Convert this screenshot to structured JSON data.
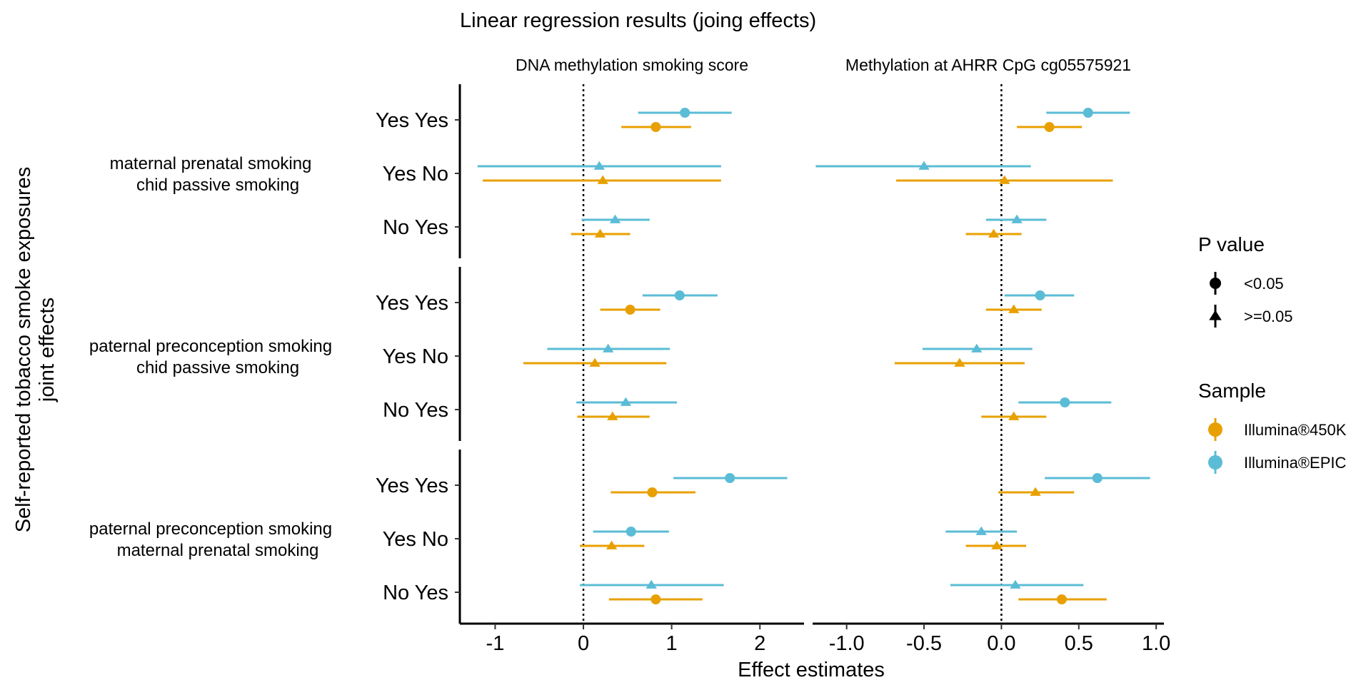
{
  "chart_data": {
    "type": "forest",
    "title": "Linear regression results (joing effects)",
    "xlabel": "Effect estimates",
    "ylabel_lines": [
      "Self-reported tobacco smoke exposures",
      "joint effects"
    ],
    "reference_line": 0,
    "grid": false,
    "legend_position": "right",
    "groups": [
      {
        "label_lines": [
          "maternal prenatal smoking",
          "chid passive smoking"
        ],
        "rows": [
          "Yes Yes",
          "Yes No",
          "No Yes"
        ]
      },
      {
        "label_lines": [
          "paternal preconception smoking",
          "chid passive smoking"
        ],
        "rows": [
          "Yes Yes",
          "Yes No",
          "No Yes"
        ]
      },
      {
        "label_lines": [
          "paternal preconception smoking",
          "maternal prenatal smoking"
        ],
        "rows": [
          "Yes Yes",
          "Yes No",
          "No Yes"
        ]
      }
    ],
    "series": [
      {
        "name": "Illumina®450K",
        "color": "#E8A000"
      },
      {
        "name": "Illumina®EPIC",
        "color": "#5BBCD6"
      }
    ],
    "shape_legend": {
      "title": "P value",
      "items": [
        {
          "label": "<0.05",
          "shape": "circle"
        },
        {
          "label": ">=0.05",
          "shape": "triangle"
        }
      ]
    },
    "sample_legend_title": "Sample",
    "panels": [
      {
        "title": "DNA methylation smoking score",
        "xlim": [
          -1.4,
          2.5
        ],
        "xticks": [
          -1,
          0,
          1,
          2
        ],
        "xtick_labels": [
          "-1",
          "0",
          "1",
          "2"
        ],
        "points": [
          {
            "group": 0,
            "row": 0,
            "series": 1,
            "est": 1.15,
            "lo": 0.62,
            "hi": 1.68,
            "p": "<0.05"
          },
          {
            "group": 0,
            "row": 0,
            "series": 0,
            "est": 0.82,
            "lo": 0.43,
            "hi": 1.22,
            "p": "<0.05"
          },
          {
            "group": 0,
            "row": 1,
            "series": 1,
            "est": 0.18,
            "lo": -1.2,
            "hi": 1.56,
            "p": ">=0.05"
          },
          {
            "group": 0,
            "row": 1,
            "series": 0,
            "est": 0.22,
            "lo": -1.14,
            "hi": 1.56,
            "p": ">=0.05"
          },
          {
            "group": 0,
            "row": 2,
            "series": 1,
            "est": 0.36,
            "lo": -0.02,
            "hi": 0.75,
            "p": ">=0.05"
          },
          {
            "group": 0,
            "row": 2,
            "series": 0,
            "est": 0.19,
            "lo": -0.14,
            "hi": 0.53,
            "p": ">=0.05"
          },
          {
            "group": 1,
            "row": 0,
            "series": 1,
            "est": 1.09,
            "lo": 0.67,
            "hi": 1.52,
            "p": "<0.05"
          },
          {
            "group": 1,
            "row": 0,
            "series": 0,
            "est": 0.53,
            "lo": 0.19,
            "hi": 0.87,
            "p": "<0.05"
          },
          {
            "group": 1,
            "row": 1,
            "series": 1,
            "est": 0.28,
            "lo": -0.41,
            "hi": 0.98,
            "p": ">=0.05"
          },
          {
            "group": 1,
            "row": 1,
            "series": 0,
            "est": 0.13,
            "lo": -0.68,
            "hi": 0.94,
            "p": ">=0.05"
          },
          {
            "group": 1,
            "row": 2,
            "series": 1,
            "est": 0.48,
            "lo": -0.08,
            "hi": 1.06,
            "p": ">=0.05"
          },
          {
            "group": 1,
            "row": 2,
            "series": 0,
            "est": 0.33,
            "lo": -0.07,
            "hi": 0.75,
            "p": ">=0.05"
          },
          {
            "group": 2,
            "row": 0,
            "series": 1,
            "est": 1.66,
            "lo": 1.02,
            "hi": 2.31,
            "p": "<0.05"
          },
          {
            "group": 2,
            "row": 0,
            "series": 0,
            "est": 0.78,
            "lo": 0.31,
            "hi": 1.27,
            "p": "<0.05"
          },
          {
            "group": 2,
            "row": 1,
            "series": 1,
            "est": 0.54,
            "lo": 0.11,
            "hi": 0.97,
            "p": "<0.05"
          },
          {
            "group": 2,
            "row": 1,
            "series": 0,
            "est": 0.32,
            "lo": -0.04,
            "hi": 0.69,
            "p": ">=0.05"
          },
          {
            "group": 2,
            "row": 2,
            "series": 1,
            "est": 0.77,
            "lo": -0.04,
            "hi": 1.59,
            "p": ">=0.05"
          },
          {
            "group": 2,
            "row": 2,
            "series": 0,
            "est": 0.82,
            "lo": 0.29,
            "hi": 1.35,
            "p": "<0.05"
          }
        ]
      },
      {
        "title": "Methylation at AHRR CpG cg05575921",
        "xlim": [
          -1.22,
          1.05
        ],
        "xticks": [
          -1.0,
          -0.5,
          0.0,
          0.5,
          1.0
        ],
        "xtick_labels": [
          "-1.0",
          "-0.5",
          "0.0",
          "0.5",
          "1.0"
        ],
        "points": [
          {
            "group": 0,
            "row": 0,
            "series": 1,
            "est": 0.56,
            "lo": 0.29,
            "hi": 0.83,
            "p": "<0.05"
          },
          {
            "group": 0,
            "row": 0,
            "series": 0,
            "est": 0.31,
            "lo": 0.1,
            "hi": 0.52,
            "p": "<0.05"
          },
          {
            "group": 0,
            "row": 1,
            "series": 1,
            "est": -0.5,
            "lo": -1.2,
            "hi": 0.19,
            "p": ">=0.05"
          },
          {
            "group": 0,
            "row": 1,
            "series": 0,
            "est": 0.02,
            "lo": -0.68,
            "hi": 0.72,
            "p": ">=0.05"
          },
          {
            "group": 0,
            "row": 2,
            "series": 1,
            "est": 0.1,
            "lo": -0.1,
            "hi": 0.29,
            "p": ">=0.05"
          },
          {
            "group": 0,
            "row": 2,
            "series": 0,
            "est": -0.05,
            "lo": -0.23,
            "hi": 0.13,
            "p": ">=0.05"
          },
          {
            "group": 1,
            "row": 0,
            "series": 1,
            "est": 0.25,
            "lo": 0.02,
            "hi": 0.47,
            "p": "<0.05"
          },
          {
            "group": 1,
            "row": 0,
            "series": 0,
            "est": 0.08,
            "lo": -0.1,
            "hi": 0.26,
            "p": ">=0.05"
          },
          {
            "group": 1,
            "row": 1,
            "series": 1,
            "est": -0.16,
            "lo": -0.51,
            "hi": 0.2,
            "p": ">=0.05"
          },
          {
            "group": 1,
            "row": 1,
            "series": 0,
            "est": -0.27,
            "lo": -0.69,
            "hi": 0.15,
            "p": ">=0.05"
          },
          {
            "group": 1,
            "row": 2,
            "series": 1,
            "est": 0.41,
            "lo": 0.11,
            "hi": 0.71,
            "p": "<0.05"
          },
          {
            "group": 1,
            "row": 2,
            "series": 0,
            "est": 0.08,
            "lo": -0.13,
            "hi": 0.29,
            "p": ">=0.05"
          },
          {
            "group": 2,
            "row": 0,
            "series": 1,
            "est": 0.62,
            "lo": 0.28,
            "hi": 0.96,
            "p": "<0.05"
          },
          {
            "group": 2,
            "row": 0,
            "series": 0,
            "est": 0.22,
            "lo": -0.02,
            "hi": 0.47,
            "p": ">=0.05"
          },
          {
            "group": 2,
            "row": 1,
            "series": 1,
            "est": -0.13,
            "lo": -0.36,
            "hi": 0.1,
            "p": ">=0.05"
          },
          {
            "group": 2,
            "row": 1,
            "series": 0,
            "est": -0.03,
            "lo": -0.23,
            "hi": 0.16,
            "p": ">=0.05"
          },
          {
            "group": 2,
            "row": 2,
            "series": 1,
            "est": 0.09,
            "lo": -0.33,
            "hi": 0.53,
            "p": ">=0.05"
          },
          {
            "group": 2,
            "row": 2,
            "series": 0,
            "est": 0.39,
            "lo": 0.11,
            "hi": 0.68,
            "p": "<0.05"
          }
        ]
      }
    ]
  }
}
